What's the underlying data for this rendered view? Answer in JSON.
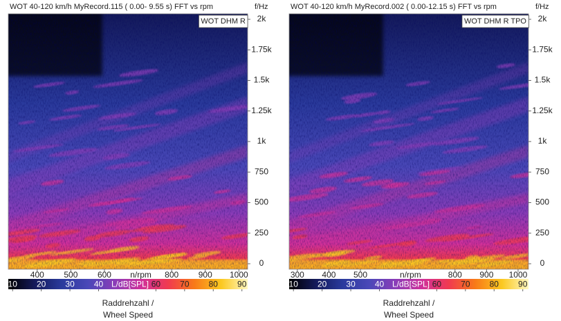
{
  "chart_data": [
    {
      "type": "spectrogram",
      "title": "WOT 40-120 km/h MyRecord.115 ( 0.00- 9.55 s) FFT vs rpm",
      "legend": "WOT DHM R",
      "x_unit": "n/rpm",
      "y_unit": "f/Hz",
      "colorbar_label": "L/dB[SPL]",
      "xlabel": [
        "Raddrehzahl /",
        "Wheel Speed"
      ],
      "xlim": [
        314,
        1026
      ],
      "xticks": [
        400,
        500,
        600,
        800,
        900,
        1000
      ],
      "ylim": [
        -45,
        2045
      ],
      "yticks": [
        0,
        250,
        500,
        750,
        {
          "value": 1000,
          "label": "1k"
        },
        {
          "value": 1250,
          "label": "1.25k"
        },
        {
          "value": 1500,
          "label": "1.5k"
        },
        {
          "value": 1750,
          "label": "1.75k"
        },
        {
          "value": 2000,
          "label": "2k"
        }
      ],
      "clim": [
        8.5,
        92
      ],
      "cticks": [
        10,
        20,
        30,
        40,
        60,
        70,
        80,
        90
      ],
      "colormap": [
        "#000000",
        "#141a5a",
        "#2a3a9c",
        "#4a48b8",
        "#8a3cb8",
        "#d0309a",
        "#f03a50",
        "#f87a18",
        "#fbc820",
        "#fff8c0"
      ]
    },
    {
      "type": "spectrogram",
      "title": "WOT 40-120 km/h MyRecord.002 ( 0.00-12.15 s) FFT vs rpm",
      "legend": "WOT DHM R TPO",
      "x_unit": "n/rpm",
      "y_unit": "f/Hz",
      "colorbar_label": "L/dB[SPL]",
      "xlabel": [
        "Raddrehzahl /",
        "Wheel Speed"
      ],
      "xlim": [
        274,
        1033
      ],
      "xticks": [
        300,
        400,
        500,
        800,
        900,
        1000
      ],
      "ylim": [
        -45,
        2045
      ],
      "yticks": [
        0,
        250,
        500,
        750,
        {
          "value": 1000,
          "label": "1k"
        },
        {
          "value": 1250,
          "label": "1.25k"
        },
        {
          "value": 1500,
          "label": "1.5k"
        },
        {
          "value": 1750,
          "label": "1.75k"
        },
        {
          "value": 2000,
          "label": "2k"
        }
      ],
      "clim": [
        8.5,
        92
      ],
      "cticks": [
        10,
        20,
        30,
        40,
        60,
        70,
        80,
        90
      ],
      "colormap": [
        "#000000",
        "#141a5a",
        "#2a3a9c",
        "#4a48b8",
        "#8a3cb8",
        "#d0309a",
        "#f03a50",
        "#f87a18",
        "#fbc820",
        "#fff8c0"
      ]
    }
  ]
}
